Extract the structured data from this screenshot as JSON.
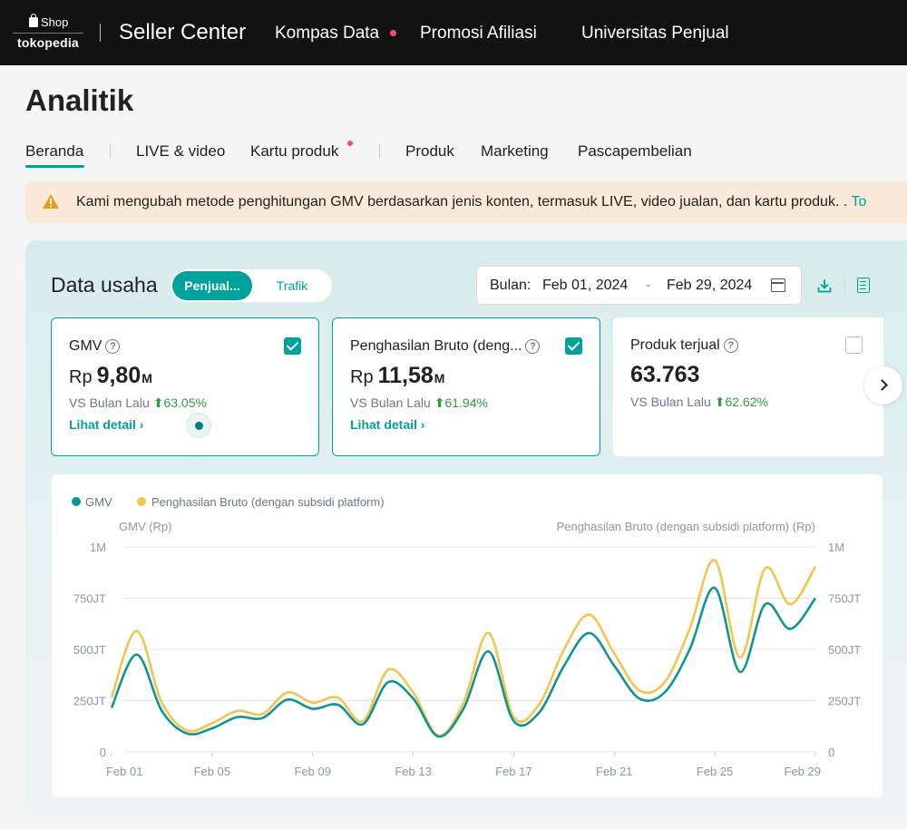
{
  "nav": {
    "logo_shop": "Shop",
    "logo_brand": "tokopedia",
    "title": "Seller Center",
    "items": [
      "Kompas Data",
      "Promosi Afiliasi",
      "Universitas Penjual"
    ]
  },
  "page_title": "Analitik",
  "tabs": [
    "Beranda",
    "LIVE & video",
    "Kartu produk",
    "Produk",
    "Marketing",
    "Pascapembelian"
  ],
  "banner": {
    "text": "Kami mengubah metode penghitungan GMV berdasarkan jenis konten, termasuk LIVE, video jualan, dan kartu produk. .",
    "link": "To"
  },
  "data_usaha": {
    "title": "Data usaha",
    "toggle_on": "Penjual...",
    "toggle_off": "Trafik",
    "date_label": "Bulan:",
    "date_from": "Feb 01, 2024",
    "date_dash": "-",
    "date_to": "Feb 29, 2024"
  },
  "metrics": [
    {
      "title": "GMV",
      "prefix": "Rp",
      "value": "9,80",
      "unit": "M",
      "compare_label": "VS Bulan Lalu",
      "change": "63.05%",
      "link": "Lihat detail ›",
      "checked": true
    },
    {
      "title": "Penghasilan Bruto (deng...",
      "prefix": "Rp",
      "value": "11,58",
      "unit": "M",
      "compare_label": "VS Bulan Lalu",
      "change": "61.94%",
      "link": "Lihat detail ›",
      "checked": true
    },
    {
      "title": "Produk terjual",
      "prefix": "",
      "value": "63.763",
      "unit": "",
      "compare_label": "VS Bulan Lalu",
      "change": "62.62%",
      "link": "",
      "checked": false
    }
  ],
  "colors": {
    "accent": "#00a39b",
    "gmv": "#0e9590",
    "bruto": "#f3c44e",
    "up": "#2e9e43"
  },
  "chart_data": {
    "type": "line",
    "legend_position": "top-left",
    "ylabel_left": "GMV (Rp)",
    "ylabel_right": "Penghasilan Bruto (dengan subsidi platform) (Rp)",
    "yticks": [
      "0",
      "250JT",
      "500JT",
      "750JT",
      "1M"
    ],
    "ylim": [
      0,
      1000
    ],
    "y_unit": "JT",
    "grid": true,
    "categories": [
      "Feb 01",
      "Feb 02",
      "Feb 03",
      "Feb 04",
      "Feb 05",
      "Feb 06",
      "Feb 07",
      "Feb 08",
      "Feb 09",
      "Feb 10",
      "Feb 11",
      "Feb 12",
      "Feb 13",
      "Feb 14",
      "Feb 15",
      "Feb 16",
      "Feb 17",
      "Feb 18",
      "Feb 19",
      "Feb 20",
      "Feb 21",
      "Feb 22",
      "Feb 23",
      "Feb 24",
      "Feb 25",
      "Feb 26",
      "Feb 27",
      "Feb 28",
      "Feb 29"
    ],
    "xtick_labels": [
      "Feb 01",
      "Feb 05",
      "Feb 09",
      "Feb 13",
      "Feb 17",
      "Feb 21",
      "Feb 25",
      "Feb 29"
    ],
    "series": [
      {
        "name": "GMV",
        "values": [
          215,
          475,
          200,
          90,
          115,
          170,
          165,
          255,
          210,
          230,
          135,
          340,
          260,
          75,
          210,
          490,
          150,
          190,
          420,
          580,
          420,
          260,
          290,
          500,
          800,
          390,
          720,
          600,
          750
        ]
      },
      {
        "name": "Penghasilan Bruto (dengan subsidi platform)",
        "values": [
          265,
          590,
          240,
          105,
          140,
          200,
          185,
          290,
          240,
          265,
          150,
          400,
          290,
          80,
          240,
          580,
          170,
          230,
          500,
          670,
          480,
          300,
          340,
          600,
          935,
          460,
          895,
          720,
          905
        ]
      }
    ]
  }
}
